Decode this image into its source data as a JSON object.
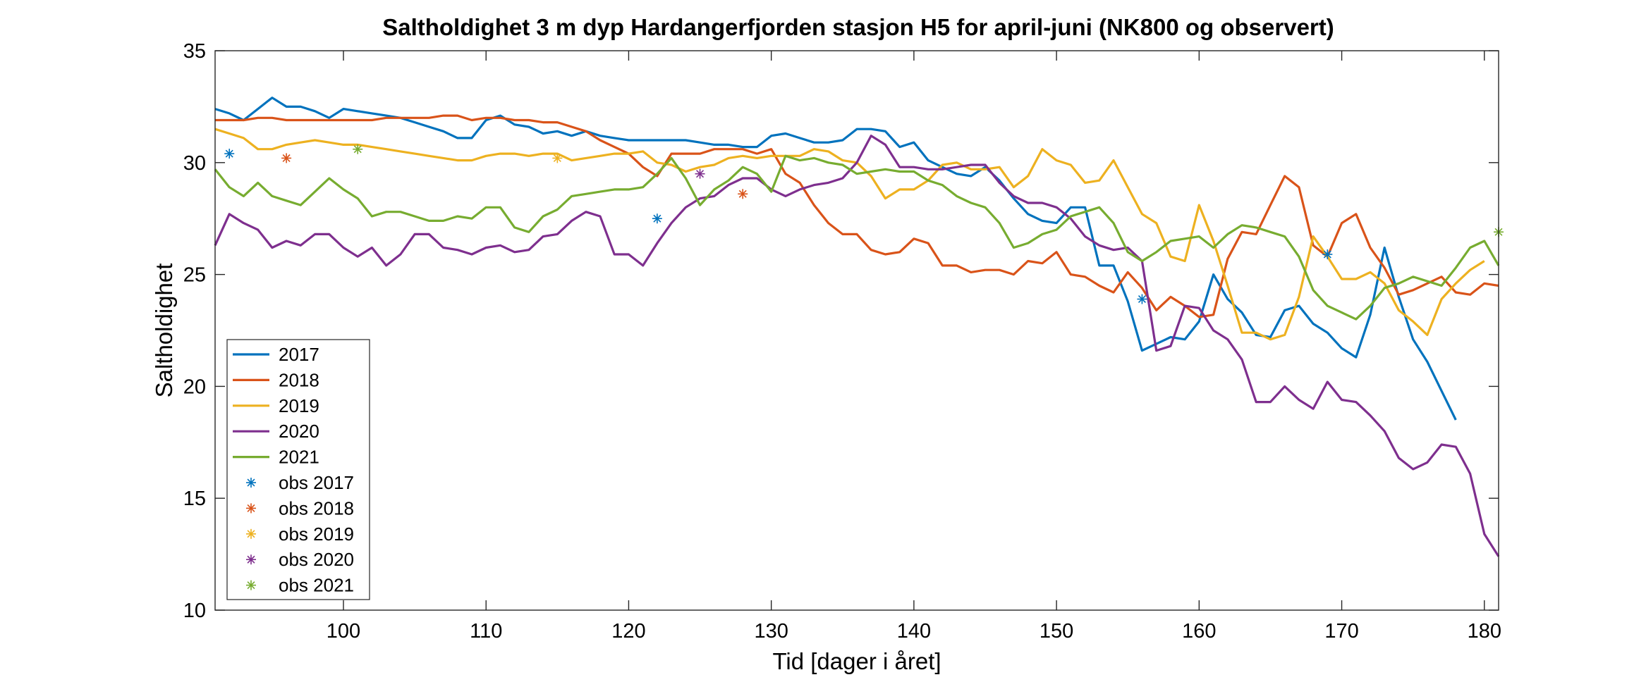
{
  "chart_data": {
    "type": "line",
    "title": "Saltholdighet 3 m dyp Hardangerfjorden stasjon H5 for april-juni (NK800 og observert)",
    "xlabel": "Tid [dager i året]",
    "ylabel": "Saltholdighet",
    "xlim": [
      91,
      181
    ],
    "ylim": [
      10,
      35
    ],
    "xticks": [
      100,
      110,
      120,
      130,
      140,
      150,
      160,
      170,
      180
    ],
    "yticks": [
      10,
      15,
      20,
      25,
      30,
      35
    ],
    "legend_position": "bottom-left",
    "grid": false,
    "x_start": 91,
    "series": [
      {
        "name": "2017",
        "color": "#0072BD",
        "values": [
          32.4,
          32.2,
          31.9,
          32.4,
          32.9,
          32.5,
          32.5,
          32.3,
          32.0,
          32.4,
          32.3,
          32.2,
          32.1,
          32.0,
          31.8,
          31.6,
          31.4,
          31.1,
          31.1,
          31.9,
          32.1,
          31.7,
          31.6,
          31.3,
          31.4,
          31.2,
          31.4,
          31.2,
          31.1,
          31.0,
          31.0,
          31.0,
          31.0,
          31.0,
          30.9,
          30.8,
          30.8,
          30.7,
          30.7,
          31.2,
          31.3,
          31.1,
          30.9,
          30.9,
          31.0,
          31.5,
          31.5,
          31.4,
          30.7,
          30.9,
          30.1,
          29.8,
          29.5,
          29.4,
          29.8,
          29.2,
          28.4,
          27.7,
          27.4,
          27.3,
          28.0,
          28.0,
          25.4,
          25.4,
          23.8,
          21.6,
          21.9,
          22.2,
          22.1,
          22.9,
          25.0,
          23.9,
          23.3,
          22.3,
          22.2,
          23.4,
          23.6,
          22.8,
          22.4,
          21.7,
          21.3,
          23.2,
          26.2,
          24.0,
          22.1,
          21.1,
          19.8,
          18.5
        ]
      },
      {
        "name": "2018",
        "color": "#D95319",
        "values": [
          31.9,
          31.9,
          31.9,
          32.0,
          32.0,
          31.9,
          31.9,
          31.9,
          31.9,
          31.9,
          31.9,
          31.9,
          32.0,
          32.0,
          32.0,
          32.0,
          32.1,
          32.1,
          31.9,
          32.0,
          32.0,
          31.9,
          31.9,
          31.8,
          31.8,
          31.6,
          31.4,
          31.0,
          30.7,
          30.4,
          29.8,
          29.4,
          30.4,
          30.4,
          30.4,
          30.6,
          30.6,
          30.6,
          30.4,
          30.6,
          29.5,
          29.1,
          28.1,
          27.3,
          26.8,
          26.8,
          26.1,
          25.9,
          26.0,
          26.6,
          26.4,
          25.4,
          25.4,
          25.1,
          25.2,
          25.2,
          25.0,
          25.6,
          25.5,
          26.0,
          25.0,
          24.9,
          24.5,
          24.2,
          25.1,
          24.4,
          23.4,
          24.0,
          23.6,
          23.1,
          23.2,
          25.7,
          26.9,
          26.8,
          28.1,
          29.4,
          28.9,
          26.3,
          25.8,
          27.3,
          27.7,
          26.2,
          25.3,
          24.1,
          24.3,
          24.6,
          24.9,
          24.2,
          24.1,
          24.6,
          24.5
        ]
      },
      {
        "name": "2019",
        "color": "#EDB120",
        "values": [
          31.5,
          31.3,
          31.1,
          30.6,
          30.6,
          30.8,
          30.9,
          31.0,
          30.9,
          30.8,
          30.8,
          30.7,
          30.6,
          30.5,
          30.4,
          30.3,
          30.2,
          30.1,
          30.1,
          30.3,
          30.4,
          30.4,
          30.3,
          30.4,
          30.4,
          30.1,
          30.2,
          30.3,
          30.4,
          30.4,
          30.5,
          30.0,
          29.9,
          29.6,
          29.8,
          29.9,
          30.2,
          30.3,
          30.2,
          30.3,
          30.3,
          30.3,
          30.6,
          30.5,
          30.1,
          30.0,
          29.4,
          28.4,
          28.8,
          28.8,
          29.2,
          29.9,
          30.0,
          29.7,
          29.7,
          29.8,
          28.9,
          29.4,
          30.6,
          30.1,
          29.9,
          29.1,
          29.2,
          30.1,
          28.9,
          27.7,
          27.3,
          25.8,
          25.6,
          28.1,
          26.5,
          24.5,
          22.4,
          22.4,
          22.1,
          22.3,
          24.0,
          26.7,
          25.8,
          24.8,
          24.8,
          25.1,
          24.6,
          23.4,
          22.9,
          22.3,
          23.9,
          24.6,
          25.2,
          25.6
        ]
      },
      {
        "name": "2020",
        "color": "#7E2F8E",
        "values": [
          26.3,
          27.7,
          27.3,
          27.0,
          26.2,
          26.5,
          26.3,
          26.8,
          26.8,
          26.2,
          25.8,
          26.2,
          25.4,
          25.9,
          26.8,
          26.8,
          26.2,
          26.1,
          25.9,
          26.2,
          26.3,
          26.0,
          26.1,
          26.7,
          26.8,
          27.4,
          27.8,
          27.6,
          25.9,
          25.9,
          25.4,
          26.4,
          27.3,
          28.0,
          28.4,
          28.5,
          29.0,
          29.3,
          29.3,
          28.8,
          28.5,
          28.8,
          29.0,
          29.1,
          29.3,
          30.0,
          31.2,
          30.8,
          29.8,
          29.8,
          29.7,
          29.7,
          29.8,
          29.9,
          29.9,
          29.1,
          28.5,
          28.2,
          28.2,
          28.0,
          27.5,
          26.7,
          26.3,
          26.1,
          26.2,
          25.6,
          21.6,
          21.8,
          23.6,
          23.5,
          22.5,
          22.1,
          21.2,
          19.3,
          19.3,
          20.0,
          19.4,
          19.0,
          20.2,
          19.4,
          19.3,
          18.7,
          18.0,
          16.8,
          16.3,
          16.6,
          17.4,
          17.3,
          16.1,
          13.4,
          12.4
        ]
      },
      {
        "name": "2021",
        "color": "#77AC30",
        "values": [
          29.7,
          28.9,
          28.5,
          29.1,
          28.5,
          28.3,
          28.1,
          28.7,
          29.3,
          28.8,
          28.4,
          27.6,
          27.8,
          27.8,
          27.6,
          27.4,
          27.4,
          27.6,
          27.5,
          28.0,
          28.0,
          27.1,
          26.9,
          27.6,
          27.9,
          28.5,
          28.6,
          28.7,
          28.8,
          28.8,
          28.9,
          29.5,
          30.2,
          29.3,
          28.1,
          28.8,
          29.2,
          29.8,
          29.5,
          28.7,
          30.3,
          30.1,
          30.2,
          30.0,
          29.9,
          29.5,
          29.6,
          29.7,
          29.6,
          29.6,
          29.2,
          29.0,
          28.5,
          28.2,
          28.0,
          27.3,
          26.2,
          26.4,
          26.8,
          27.0,
          27.6,
          27.8,
          28.0,
          27.3,
          26.0,
          25.6,
          26.0,
          26.5,
          26.6,
          26.7,
          26.2,
          26.8,
          27.2,
          27.1,
          26.9,
          26.7,
          25.8,
          24.3,
          23.6,
          23.3,
          23.0,
          23.6,
          24.4,
          24.6,
          24.9,
          24.7,
          24.5,
          25.3,
          26.2,
          26.5,
          25.4
        ]
      }
    ],
    "observations": [
      {
        "name": "obs 2017",
        "color": "#0072BD",
        "points": [
          [
            92,
            30.4
          ],
          [
            122,
            27.5
          ],
          [
            156,
            23.9
          ],
          [
            169,
            25.9
          ]
        ]
      },
      {
        "name": "obs 2018",
        "color": "#D95319",
        "points": [
          [
            96,
            30.2
          ],
          [
            128,
            28.6
          ]
        ]
      },
      {
        "name": "obs 2019",
        "color": "#EDB120",
        "points": [
          [
            115,
            30.2
          ]
        ]
      },
      {
        "name": "obs 2020",
        "color": "#7E2F8E",
        "points": [
          [
            125,
            29.5
          ]
        ]
      },
      {
        "name": "obs 2021",
        "color": "#77AC30",
        "points": [
          [
            101,
            30.6
          ],
          [
            181,
            26.9
          ]
        ]
      }
    ]
  }
}
